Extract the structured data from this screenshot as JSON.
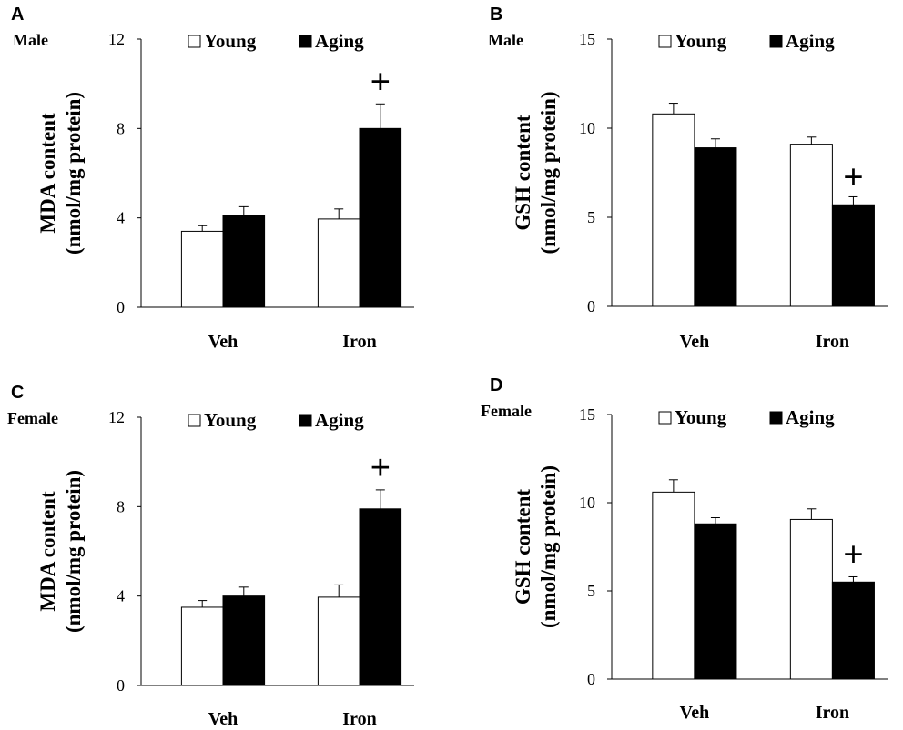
{
  "figure": {
    "style": {
      "young_fill": "#ffffff",
      "aging_fill": "#000000",
      "axis_color": "#000000"
    }
  },
  "chart_data": [
    {
      "type": "bar",
      "panel": "A",
      "sex": "Male",
      "title": "",
      "ylabel": [
        "MDA content",
        "(nmol/mg protein)"
      ],
      "xlabel": "",
      "categories": [
        "Veh",
        "Iron"
      ],
      "ylim": [
        0,
        12
      ],
      "yticks": [
        0,
        4,
        8,
        12
      ],
      "series": [
        {
          "name": "Young",
          "color": "#ffffff",
          "values": [
            3.4,
            3.95
          ],
          "errors": [
            0.25,
            0.45
          ]
        },
        {
          "name": "Aging",
          "color": "#000000",
          "values": [
            4.1,
            8.0
          ],
          "errors": [
            0.4,
            1.1
          ]
        }
      ],
      "annotations": [
        {
          "text": "+",
          "category": "Iron",
          "series": "Aging"
        }
      ],
      "legend": "top",
      "grid": false
    },
    {
      "type": "bar",
      "panel": "B",
      "sex": "Male",
      "title": "",
      "ylabel": [
        "GSH content",
        "(nmol/mg protein)"
      ],
      "xlabel": "",
      "categories": [
        "Veh",
        "Iron"
      ],
      "ylim": [
        0,
        15
      ],
      "yticks": [
        0,
        5,
        10,
        15
      ],
      "series": [
        {
          "name": "Young",
          "color": "#ffffff",
          "values": [
            10.8,
            9.1
          ],
          "errors": [
            0.6,
            0.4
          ]
        },
        {
          "name": "Aging",
          "color": "#000000",
          "values": [
            8.9,
            5.7
          ],
          "errors": [
            0.5,
            0.45
          ]
        }
      ],
      "annotations": [
        {
          "text": "+",
          "category": "Iron",
          "series": "Aging"
        }
      ],
      "legend": "top",
      "grid": false
    },
    {
      "type": "bar",
      "panel": "C",
      "sex": "Female",
      "title": "",
      "ylabel": [
        "MDA content",
        "(nmol/mg protein)"
      ],
      "xlabel": "",
      "categories": [
        "Veh",
        "Iron"
      ],
      "ylim": [
        0,
        12
      ],
      "yticks": [
        0,
        4,
        8,
        12
      ],
      "series": [
        {
          "name": "Young",
          "color": "#ffffff",
          "values": [
            3.5,
            3.95
          ],
          "errors": [
            0.3,
            0.55
          ]
        },
        {
          "name": "Aging",
          "color": "#000000",
          "values": [
            4.0,
            7.9
          ],
          "errors": [
            0.4,
            0.85
          ]
        }
      ],
      "annotations": [
        {
          "text": "+",
          "category": "Iron",
          "series": "Aging"
        }
      ],
      "legend": "top",
      "grid": false
    },
    {
      "type": "bar",
      "panel": "D",
      "sex": "Female",
      "title": "",
      "ylabel": [
        "GSH content",
        "(nmol/mg protein)"
      ],
      "xlabel": "",
      "categories": [
        "Veh",
        "Iron"
      ],
      "ylim": [
        0,
        15
      ],
      "yticks": [
        0,
        5,
        10,
        15
      ],
      "series": [
        {
          "name": "Young",
          "color": "#ffffff",
          "values": [
            10.6,
            9.05
          ],
          "errors": [
            0.7,
            0.6
          ]
        },
        {
          "name": "Aging",
          "color": "#000000",
          "values": [
            8.8,
            5.5
          ],
          "errors": [
            0.35,
            0.3
          ]
        }
      ],
      "annotations": [
        {
          "text": "+",
          "category": "Iron",
          "series": "Aging"
        }
      ],
      "legend": "top",
      "grid": false
    }
  ]
}
